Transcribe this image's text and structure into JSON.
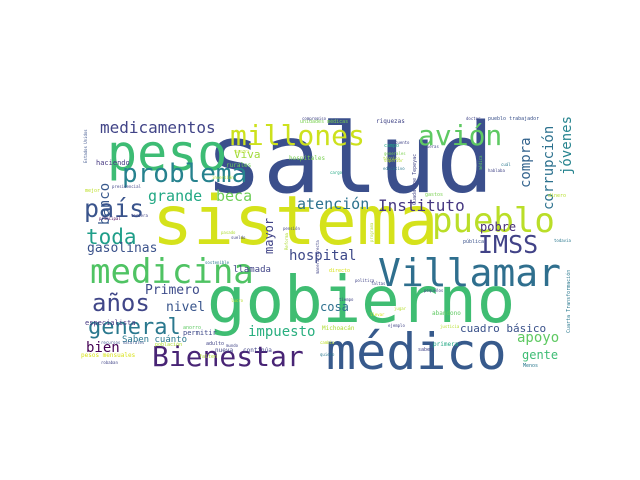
{
  "wordcloud": {
    "words": [
      {
        "text": "salud",
        "color": "#3b4f8c"
      },
      {
        "text": "gobierno",
        "color": "#3fbd72"
      },
      {
        "text": "sistema",
        "color": "#d5e21b"
      },
      {
        "text": "médico",
        "color": "#375a8c"
      },
      {
        "text": "medicina",
        "color": "#4fc363"
      },
      {
        "text": "Villamar",
        "color": "#2f6f8e"
      },
      {
        "text": "peso",
        "color": "#3dbc74"
      },
      {
        "text": "pueblo",
        "color": "#bade28"
      },
      {
        "text": "millones",
        "color": "#cde11d"
      },
      {
        "text": "problema",
        "color": "#26828e"
      },
      {
        "text": "Bienestar",
        "color": "#482475"
      },
      {
        "text": "general",
        "color": "#2a788e"
      },
      {
        "text": "país",
        "color": "#3a548c"
      },
      {
        "text": "avión",
        "color": "#5ec962"
      },
      {
        "text": "años",
        "color": "#404688"
      },
      {
        "text": "IMSS",
        "color": "#414287"
      },
      {
        "text": "toda",
        "color": "#1f9e89"
      },
      {
        "text": "medicamentos",
        "color": "#414487"
      },
      {
        "text": "Instituto",
        "color": "#453781"
      },
      {
        "text": "atención",
        "color": "#2c728e"
      },
      {
        "text": "banco",
        "color": "#38588c"
      },
      {
        "text": "grande",
        "color": "#22a884"
      },
      {
        "text": "beca",
        "color": "#6ece58"
      },
      {
        "text": "corrupción",
        "color": "#2c718e"
      },
      {
        "text": "compra",
        "color": "#33638d"
      },
      {
        "text": "jóvenes",
        "color": "#25838e"
      },
      {
        "text": "hospital",
        "color": "#3e4989"
      },
      {
        "text": "gasolinas",
        "color": "#3b528b"
      },
      {
        "text": "bien",
        "color": "#440154"
      },
      {
        "text": "impuesto",
        "color": "#29af7f"
      },
      {
        "text": "apoyo",
        "color": "#5ec962"
      },
      {
        "text": "cosa",
        "color": "#2d708e"
      },
      {
        "text": "Primero",
        "color": "#3e4c8a"
      },
      {
        "text": "nivel",
        "color": "#39558c"
      },
      {
        "text": "cuadro básico",
        "color": "#3b528b"
      },
      {
        "text": "pobre",
        "color": "#472d7b"
      },
      {
        "text": "mayor",
        "color": "#414487"
      },
      {
        "text": "gente",
        "color": "#3dbc74"
      },
      {
        "text": "Viva",
        "color": "#a0da39"
      },
      {
        "text": "llamada",
        "color": "#414487"
      },
      {
        "text": "Saben cuánto",
        "color": "#2a788e"
      },
      {
        "text": "especialista",
        "color": "#453781"
      },
      {
        "text": "permitir",
        "color": "#3e4989"
      },
      {
        "text": "nueva",
        "color": "#414487"
      },
      {
        "text": "continúa",
        "color": "#414487"
      },
      {
        "text": "haciendo",
        "color": "#453781"
      },
      {
        "text": "hospitales",
        "color": "#7ad151"
      },
      {
        "text": "rurales",
        "color": "#6ece58"
      },
      {
        "text": "unidades médicas",
        "color": "#7ad151"
      },
      {
        "text": "riquezas",
        "color": "#414487"
      },
      {
        "text": "pueblo trabajador",
        "color": "#3b528b"
      },
      {
        "text": "Cuarta Transformación",
        "color": "#2a788e"
      },
      {
        "text": "Michoacán",
        "color": "#addc30"
      },
      {
        "text": "abandono",
        "color": "#5ec962"
      },
      {
        "text": "primera",
        "color": "#22a884"
      },
      {
        "text": "saben",
        "color": "#414487"
      },
      {
        "text": "pesos mensuales",
        "color": "#d8e219"
      },
      {
        "text": "Guadalupe Tepeyac",
        "color": "#414487"
      },
      {
        "text": "pública",
        "color": "#3b528b"
      },
      {
        "text": "robaban",
        "color": "#414487"
      },
      {
        "text": "población",
        "color": "#addc30"
      },
      {
        "text": "principal",
        "color": "#440154"
      },
      {
        "text": "presidencial",
        "color": "#414487"
      },
      {
        "text": "mejor",
        "color": "#bddf26"
      },
      {
        "text": "dinero",
        "color": "#b5de2b"
      },
      {
        "text": "doctor",
        "color": "#414487"
      },
      {
        "text": "gastos",
        "color": "#7ad151"
      },
      {
        "text": "cambio",
        "color": "#bddf26"
      },
      {
        "text": "falten",
        "color": "#addc30"
      },
      {
        "text": "adulto",
        "color": "#414487"
      },
      {
        "text": "anorro",
        "color": "#5ec962"
      },
      {
        "text": "lucro",
        "color": "#b5de2b"
      },
      {
        "text": "recursos naturales",
        "color": "#3b528b"
      },
      {
        "text": "mundo",
        "color": "#414487"
      },
      {
        "text": "Menos",
        "color": "#2a788e"
      },
      {
        "text": "quiero",
        "color": "#2a788e"
      },
      {
        "text": "ejemplo",
        "color": "#414487"
      },
      {
        "text": "tiempo",
        "color": "#414487"
      },
      {
        "text": "pequeños",
        "color": "#414487"
      },
      {
        "text": "justicia",
        "color": "#b5de2b"
      },
      {
        "text": "política",
        "color": "#414487"
      },
      {
        "text": "faltas",
        "color": "#414487"
      },
      {
        "text": "directo",
        "color": "#d8e219"
      },
      {
        "text": "sueldo",
        "color": "#414487"
      },
      {
        "text": "Reforma",
        "color": "#addc30"
      },
      {
        "text": "manera directa",
        "color": "#414487"
      },
      {
        "text": "programa",
        "color": "#b5de2b"
      },
      {
        "text": "compromiso",
        "color": "#414487"
      },
      {
        "text": "hablaba",
        "color": "#414487"
      },
      {
        "text": "cuál",
        "color": "#2a788e"
      },
      {
        "text": "técnico",
        "color": "#addc30"
      },
      {
        "text": "generales",
        "color": "#7ad151"
      },
      {
        "text": "educativo",
        "color": "#2a788e"
      },
      {
        "text": "superior",
        "color": "#b5de2b"
      },
      {
        "text": "quieras",
        "color": "#414487"
      },
      {
        "text": "campo",
        "color": "#22a884"
      },
      {
        "text": "médica",
        "color": "#5ec962"
      },
      {
        "text": "cuento",
        "color": "#414487"
      },
      {
        "text": "basura",
        "color": "#bddf26"
      },
      {
        "text": "pasado",
        "color": "#addc30"
      },
      {
        "text": "tercera",
        "color": "#414487"
      },
      {
        "text": "inversión",
        "color": "#b5de2b"
      },
      {
        "text": "pensión",
        "color": "#414487"
      },
      {
        "text": "cargo",
        "color": "#22a884"
      },
      {
        "text": "llevar",
        "color": "#d8e219"
      },
      {
        "text": "jugar",
        "color": "#b5de2b"
      },
      {
        "text": "todavía",
        "color": "#2a788e"
      },
      {
        "text": "Estados Unidos",
        "color": "#3b528b"
      },
      {
        "text": "sostenible",
        "color": "#2a788e"
      }
    ]
  }
}
